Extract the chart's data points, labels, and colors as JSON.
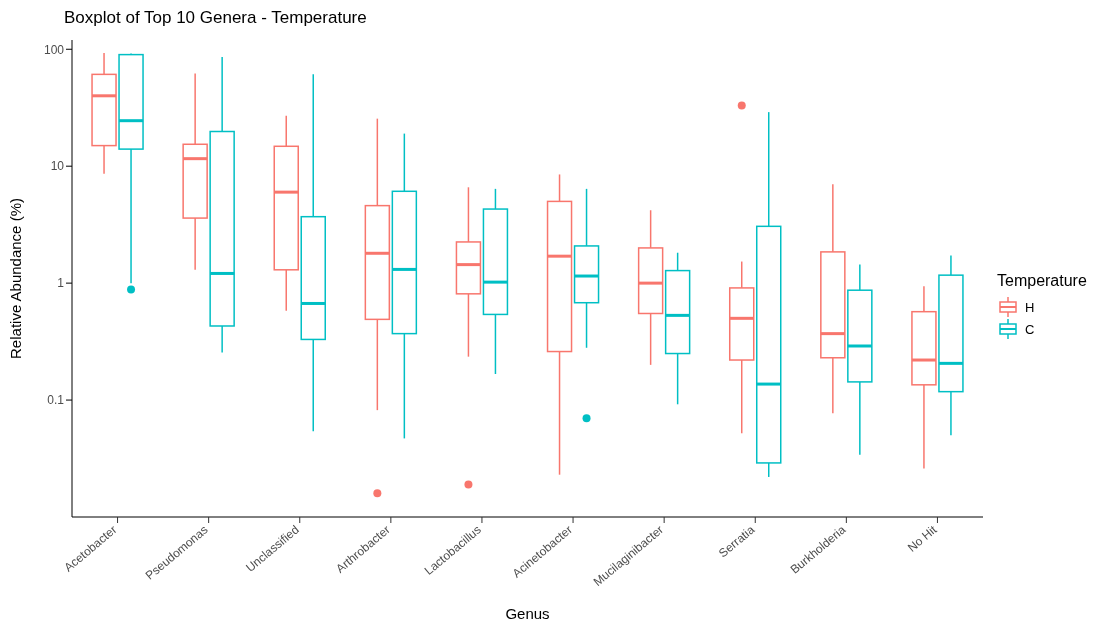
{
  "chart_data": {
    "type": "box",
    "title": "Boxplot of Top 10 Genera - Temperature",
    "xlabel": "Genus",
    "ylabel": "Relative Abundance (%)",
    "legend_title": "Temperature",
    "log": true,
    "grid": false,
    "legend": "right",
    "ylim": [
      0.01,
      120
    ],
    "yticks": [
      0.1,
      1,
      10,
      100
    ],
    "categories": [
      "Acetobacter",
      "Pseudomonas",
      "Unclassified",
      "Arthrobacter",
      "Lactobacillus",
      "Acinetobacter",
      "Mucilaginibacter",
      "Serratia",
      "Burkholderia",
      "No Hit"
    ],
    "series": [
      {
        "name": "H",
        "color": "#f8766d",
        "boxes": [
          {
            "low": 8.6,
            "q1": 15,
            "median": 40,
            "q3": 61,
            "high": 93
          },
          {
            "low": 1.3,
            "q1": 3.6,
            "median": 11.6,
            "q3": 15.4,
            "high": 62
          },
          {
            "low": 0.58,
            "q1": 1.3,
            "median": 6,
            "q3": 14.8,
            "high": 27
          },
          {
            "low": 0.082,
            "q1": 0.49,
            "median": 1.8,
            "q3": 4.6,
            "high": 25.5,
            "outliers": [
              0.016
            ]
          },
          {
            "low": 0.235,
            "q1": 0.81,
            "median": 1.44,
            "q3": 2.25,
            "high": 6.6,
            "outliers": [
              0.019
            ]
          },
          {
            "low": 0.023,
            "q1": 0.26,
            "median": 1.7,
            "q3": 5,
            "high": 8.5
          },
          {
            "low": 0.2,
            "q1": 0.55,
            "median": 1,
            "q3": 2,
            "high": 4.2
          },
          {
            "low": 0.052,
            "q1": 0.22,
            "median": 0.5,
            "q3": 0.91,
            "high": 1.53,
            "outliers": [
              33
            ]
          },
          {
            "low": 0.077,
            "q1": 0.23,
            "median": 0.37,
            "q3": 1.85,
            "high": 7
          },
          {
            "low": 0.026,
            "q1": 0.135,
            "median": 0.22,
            "q3": 0.57,
            "high": 0.94
          }
        ]
      },
      {
        "name": "C",
        "color": "#00bfc4",
        "boxes": [
          {
            "low": 1,
            "q1": 14,
            "median": 24.5,
            "q3": 90,
            "high": 92,
            "outliers": [
              0.88
            ]
          },
          {
            "low": 0.255,
            "q1": 0.43,
            "median": 1.21,
            "q3": 19.8,
            "high": 86
          },
          {
            "low": 0.054,
            "q1": 0.33,
            "median": 0.67,
            "q3": 3.7,
            "high": 61
          },
          {
            "low": 0.047,
            "q1": 0.37,
            "median": 1.31,
            "q3": 6.1,
            "high": 19
          },
          {
            "low": 0.167,
            "q1": 0.54,
            "median": 1.02,
            "q3": 4.3,
            "high": 6.4
          },
          {
            "low": 0.28,
            "q1": 0.68,
            "median": 1.15,
            "q3": 2.08,
            "high": 6.4,
            "outliers": [
              0.07
            ]
          },
          {
            "low": 0.092,
            "q1": 0.25,
            "median": 0.53,
            "q3": 1.28,
            "high": 1.82
          },
          {
            "low": 0.022,
            "q1": 0.029,
            "median": 0.137,
            "q3": 3.06,
            "high": 29
          },
          {
            "low": 0.034,
            "q1": 0.143,
            "median": 0.29,
            "q3": 0.87,
            "high": 1.44
          },
          {
            "low": 0.05,
            "q1": 0.118,
            "median": 0.206,
            "q3": 1.17,
            "high": 1.72
          }
        ]
      }
    ]
  }
}
